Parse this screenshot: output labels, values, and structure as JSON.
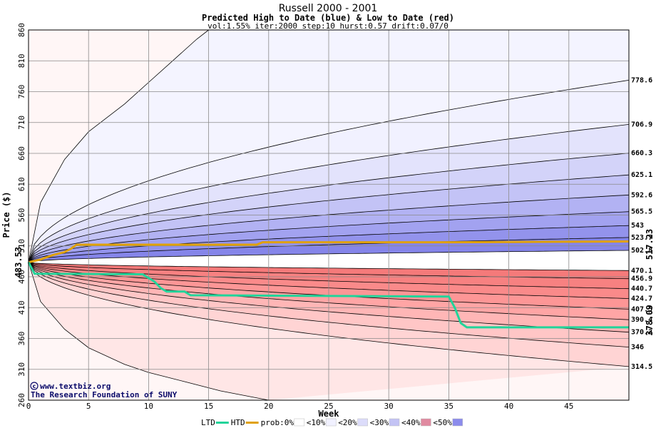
{
  "chart_data": {
    "type": "area",
    "title": "Russell 2000 - 2001",
    "subtitle": "Predicted High to Date (blue) &  Low to Date (red)",
    "params": "vol:1.55% iter:2000 step:10 hurst:0.57 drift:0.07/0",
    "xlabel": "Week",
    "ylabel": "Price ($)",
    "xlim": [
      0,
      50
    ],
    "ylim": [
      260,
      860
    ],
    "x_ticks": [
      0,
      5,
      10,
      15,
      20,
      25,
      30,
      35,
      40,
      45
    ],
    "y_ticks": [
      260,
      310,
      360,
      410,
      460,
      510,
      560,
      610,
      660,
      710,
      760,
      810,
      860
    ],
    "grid": true,
    "start_value": 483.53,
    "start_label": "483.53",
    "htd_final_label": "517.23",
    "ltd_final_label": "378.09",
    "high_percentiles": [
      {
        "label": "778.6",
        "end": 778.6
      },
      {
        "label": "706.9",
        "end": 706.9
      },
      {
        "label": "660.3",
        "end": 660.3
      },
      {
        "label": "625.1",
        "end": 625.1
      },
      {
        "label": "592.6",
        "end": 592.6
      },
      {
        "label": "565.5",
        "end": 565.5
      },
      {
        "label": "543",
        "end": 543
      },
      {
        "label": "523.7",
        "end": 523.7
      },
      {
        "label": "502.8",
        "end": 502.8
      }
    ],
    "low_percentiles": [
      {
        "label": "470.1",
        "end": 470.1
      },
      {
        "label": "456.9",
        "end": 456.9
      },
      {
        "label": "440.7",
        "end": 440.7
      },
      {
        "label": "424.7",
        "end": 424.7
      },
      {
        "label": "407.5",
        "end": 407.5
      },
      {
        "label": "390.4",
        "end": 390.4
      },
      {
        "label": "370.2",
        "end": 370.2
      },
      {
        "label": "346",
        "end": 346
      },
      {
        "label": "314.5",
        "end": 314.5
      }
    ],
    "high_outer_envelope": [
      {
        "x": 0,
        "y": 483.53
      },
      {
        "x": 1,
        "y": 580
      },
      {
        "x": 3,
        "y": 650
      },
      {
        "x": 5,
        "y": 695
      },
      {
        "x": 8,
        "y": 740
      },
      {
        "x": 10,
        "y": 775
      },
      {
        "x": 12,
        "y": 810
      },
      {
        "x": 14,
        "y": 845
      },
      {
        "x": 15,
        "y": 860
      }
    ],
    "low_outer_envelope": [
      {
        "x": 0,
        "y": 483.53
      },
      {
        "x": 1,
        "y": 420
      },
      {
        "x": 3,
        "y": 375
      },
      {
        "x": 5,
        "y": 345
      },
      {
        "x": 8,
        "y": 318
      },
      {
        "x": 10,
        "y": 305
      },
      {
        "x": 13,
        "y": 290
      },
      {
        "x": 16,
        "y": 275
      },
      {
        "x": 20,
        "y": 260
      }
    ],
    "htd_series": [
      {
        "x": 0,
        "y": 483.53
      },
      {
        "x": 1,
        "y": 488
      },
      {
        "x": 2,
        "y": 495
      },
      {
        "x": 3,
        "y": 500
      },
      {
        "x": 3.5,
        "y": 505
      },
      {
        "x": 4,
        "y": 512
      },
      {
        "x": 19,
        "y": 512
      },
      {
        "x": 19.5,
        "y": 516
      },
      {
        "x": 35,
        "y": 516
      },
      {
        "x": 50,
        "y": 517.23
      }
    ],
    "ltd_series": [
      {
        "x": 0,
        "y": 483.53
      },
      {
        "x": 0.5,
        "y": 465
      },
      {
        "x": 9.5,
        "y": 464
      },
      {
        "x": 10.5,
        "y": 452
      },
      {
        "x": 11,
        "y": 442
      },
      {
        "x": 11.5,
        "y": 436
      },
      {
        "x": 13,
        "y": 436
      },
      {
        "x": 13.5,
        "y": 430
      },
      {
        "x": 35,
        "y": 428
      },
      {
        "x": 35.5,
        "y": 410
      },
      {
        "x": 36,
        "y": 385
      },
      {
        "x": 36.5,
        "y": 378.09
      },
      {
        "x": 50,
        "y": 378.09
      }
    ],
    "legend": [
      {
        "label": "LTD",
        "kind": "line",
        "color": "#22d49a"
      },
      {
        "label": "HTD",
        "kind": "line",
        "color": "#e0a10a"
      },
      {
        "label": "prob:0%",
        "kind": "swatch",
        "color": "#ffffff"
      },
      {
        "label": "<10%",
        "kind": "swatch",
        "color": "#f1f1ff"
      },
      {
        "label": "<20%",
        "kind": "swatch",
        "color": "#dcdcfa"
      },
      {
        "label": "<30%",
        "kind": "swatch",
        "color": "#c3c3f4"
      },
      {
        "label": "<40%",
        "kind": "swatch",
        "color": "#e08aa0"
      },
      {
        "label": "<50%",
        "kind": "swatch",
        "color": "#8c8cec"
      }
    ],
    "colors": {
      "plot_background": "#fff6f6",
      "high_bands": [
        "#f1f1ff",
        "#e3e3fc",
        "#d3d3f9",
        "#c3c3f6",
        "#b2b2f3",
        "#a2a2f0",
        "#9393ec",
        "#8585e9"
      ],
      "low_bands": [
        "#ffd4d4",
        "#ffc6c6",
        "#ffb6b6",
        "#ffa5a5",
        "#fd9696",
        "#fa8a8a",
        "#f78181",
        "#f57a7a"
      ],
      "low_outer_band": "#ffe6e6",
      "high_outer_band": "#f4f4ff",
      "htd_color": "#e0a10a",
      "ltd_color": "#22d49a",
      "start_label_color": "#000000",
      "htd_label_color": "#8a6a00",
      "ltd_label_color": "#138a5a"
    }
  },
  "credits": {
    "site": "www.textbiz.org",
    "org": "The Research Foundation of SUNY"
  }
}
